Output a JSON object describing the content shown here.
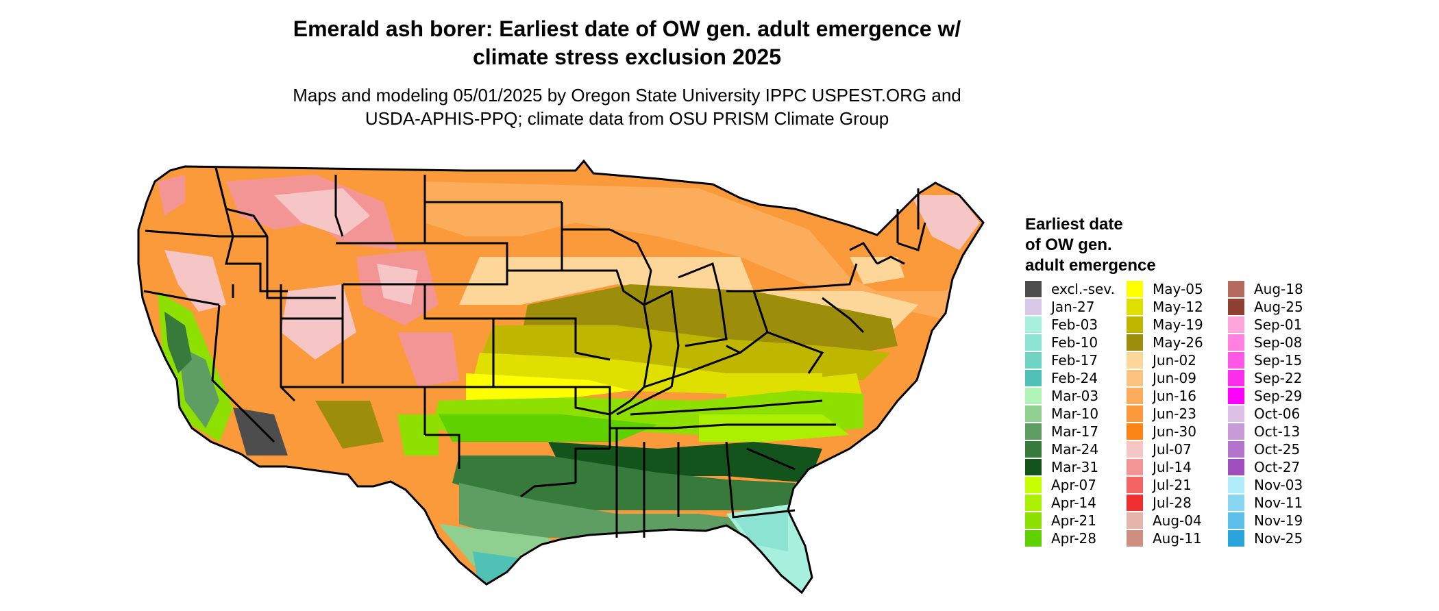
{
  "title_lines": [
    "Emerald ash borer: Earliest date of OW gen. adult emergence w/",
    "climate stress exclusion 2025"
  ],
  "subtitle_lines": [
    "Maps and modeling 05/01/2025 by Oregon State University IPPC USPEST.ORG and",
    "USDA-APHIS-PPQ; climate data from OSU PRISM Climate Group"
  ],
  "legend": {
    "title_lines": [
      "Earliest date",
      "of OW gen.",
      "adult emergence"
    ],
    "items": [
      {
        "label": "excl.-sev.",
        "color": "#4d4d4d"
      },
      {
        "label": "Jan-27",
        "color": "#d9c8e8"
      },
      {
        "label": "Feb-03",
        "color": "#a8f0de"
      },
      {
        "label": "Feb-10",
        "color": "#8ce3d2"
      },
      {
        "label": "Feb-17",
        "color": "#6fd4c4"
      },
      {
        "label": "Feb-24",
        "color": "#4fc2b5"
      },
      {
        "label": "Mar-03",
        "color": "#b1f5b9"
      },
      {
        "label": "Mar-10",
        "color": "#8fcf8f"
      },
      {
        "label": "Mar-17",
        "color": "#5f9e63"
      },
      {
        "label": "Mar-24",
        "color": "#387a3c"
      },
      {
        "label": "Mar-31",
        "color": "#13541c"
      },
      {
        "label": "Apr-07",
        "color": "#c5ff00"
      },
      {
        "label": "Apr-14",
        "color": "#aaf000"
      },
      {
        "label": "Apr-21",
        "color": "#8ee000"
      },
      {
        "label": "Apr-28",
        "color": "#5fd000"
      },
      {
        "label": "May-05",
        "color": "#ffff00"
      },
      {
        "label": "May-12",
        "color": "#e0e000"
      },
      {
        "label": "May-19",
        "color": "#bfb600"
      },
      {
        "label": "May-26",
        "color": "#9c8d0a"
      },
      {
        "label": "Jun-02",
        "color": "#fdd69a"
      },
      {
        "label": "Jun-09",
        "color": "#fcc27f"
      },
      {
        "label": "Jun-16",
        "color": "#fbad5c"
      },
      {
        "label": "Jun-23",
        "color": "#fb9a3a"
      },
      {
        "label": "Jun-30",
        "color": "#fa8416"
      },
      {
        "label": "Jul-07",
        "color": "#f6c6c6"
      },
      {
        "label": "Jul-14",
        "color": "#f49595"
      },
      {
        "label": "Jul-21",
        "color": "#f36464"
      },
      {
        "label": "Jul-28",
        "color": "#f03030"
      },
      {
        "label": "Aug-04",
        "color": "#e6b5aa"
      },
      {
        "label": "Aug-11",
        "color": "#cf8f80"
      },
      {
        "label": "Aug-18",
        "color": "#b36a5c"
      },
      {
        "label": "Aug-25",
        "color": "#8f4030"
      },
      {
        "label": "Sep-01",
        "color": "#ffa5dc"
      },
      {
        "label": "Sep-08",
        "color": "#ff80e0"
      },
      {
        "label": "Sep-15",
        "color": "#ff58e6"
      },
      {
        "label": "Sep-22",
        "color": "#ff2eef"
      },
      {
        "label": "Sep-29",
        "color": "#ff00ff"
      },
      {
        "label": "Oct-06",
        "color": "#dcc0e6"
      },
      {
        "label": "Oct-13",
        "color": "#c99ad8"
      },
      {
        "label": "Oct-25",
        "color": "#b474cb"
      },
      {
        "label": "Oct-27",
        "color": "#9e4ebd"
      },
      {
        "label": "Nov-03",
        "color": "#b0ecfa"
      },
      {
        "label": "Nov-11",
        "color": "#88d6f2"
      },
      {
        "label": "Nov-19",
        "color": "#5cc0ea"
      },
      {
        "label": "Nov-25",
        "color": "#2aa5dc"
      }
    ]
  }
}
